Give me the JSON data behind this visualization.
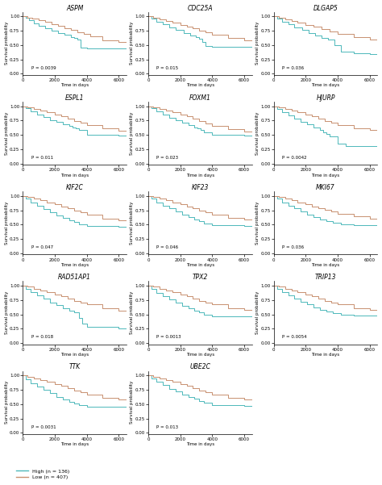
{
  "plots": [
    {
      "title": "ASPM",
      "p": "P = 0.0039",
      "row": 0,
      "col": 0
    },
    {
      "title": "CDC25A",
      "p": "P = 0.015",
      "row": 0,
      "col": 1
    },
    {
      "title": "DLGAP5",
      "p": "P = 0.036",
      "row": 0,
      "col": 2
    },
    {
      "title": "ESPL1",
      "p": "P = 0.011",
      "row": 1,
      "col": 0
    },
    {
      "title": "FOXM1",
      "p": "P = 0.023",
      "row": 1,
      "col": 1
    },
    {
      "title": "HJURP",
      "p": "P = 0.0042",
      "row": 1,
      "col": 2
    },
    {
      "title": "KIF2C",
      "p": "P = 0.047",
      "row": 2,
      "col": 0
    },
    {
      "title": "KIF23",
      "p": "P = 0.046",
      "row": 2,
      "col": 1
    },
    {
      "title": "MKI67",
      "p": "P = 0.036",
      "row": 2,
      "col": 2
    },
    {
      "title": "RAD51AP1",
      "p": "P = 0.018",
      "row": 3,
      "col": 0
    },
    {
      "title": "TPX2",
      "p": "P = 0.0013",
      "row": 3,
      "col": 1
    },
    {
      "title": "TRIP13",
      "p": "P = 0.0054",
      "row": 3,
      "col": 2
    },
    {
      "title": "TTK",
      "p": "P = 0.0031",
      "row": 4,
      "col": 0
    },
    {
      "title": "UBE2C",
      "p": "P = 0.013",
      "row": 4,
      "col": 1
    }
  ],
  "high_color": "#4db8ba",
  "low_color": "#c89070",
  "xlabel": "Time in days",
  "ylabel": "Survival probability",
  "xlim": [
    0,
    6500
  ],
  "ylim": [
    -0.02,
    1.08
  ],
  "xticks": [
    0,
    2000,
    4000,
    6000
  ],
  "yticks": [
    0.0,
    0.25,
    0.5,
    0.75,
    1.0
  ],
  "legend_high": "High (n = 136)",
  "legend_low": "Low (n = 407)",
  "bg_color": "#ffffff",
  "curves": {
    "ASPM": {
      "high_t": [
        0,
        200,
        400,
        700,
        1000,
        1400,
        1800,
        2200,
        2600,
        3000,
        3200,
        3400,
        3600,
        4000,
        6500
      ],
      "high_s": [
        1.0,
        0.97,
        0.93,
        0.88,
        0.84,
        0.79,
        0.75,
        0.71,
        0.68,
        0.64,
        0.62,
        0.6,
        0.45,
        0.44,
        0.44
      ],
      "low_t": [
        0,
        300,
        600,
        1000,
        1400,
        1800,
        2200,
        2600,
        3000,
        3400,
        3800,
        4200,
        5000,
        6000,
        6500
      ],
      "low_s": [
        1.0,
        0.98,
        0.96,
        0.93,
        0.9,
        0.87,
        0.84,
        0.8,
        0.76,
        0.73,
        0.69,
        0.65,
        0.58,
        0.55,
        0.54
      ]
    },
    "CDC25A": {
      "high_t": [
        0,
        200,
        500,
        900,
        1300,
        1700,
        2200,
        2600,
        3000,
        3200,
        3400,
        3600,
        4000,
        6500
      ],
      "high_s": [
        1.0,
        0.96,
        0.91,
        0.86,
        0.81,
        0.76,
        0.71,
        0.67,
        0.64,
        0.61,
        0.55,
        0.48,
        0.47,
        0.47
      ],
      "low_t": [
        0,
        300,
        700,
        1100,
        1500,
        2000,
        2400,
        2800,
        3200,
        3600,
        4000,
        5000,
        6000,
        6500
      ],
      "low_s": [
        1.0,
        0.98,
        0.95,
        0.92,
        0.89,
        0.85,
        0.82,
        0.79,
        0.75,
        0.72,
        0.68,
        0.62,
        0.58,
        0.57
      ]
    },
    "DLGAP5": {
      "high_t": [
        0,
        200,
        500,
        900,
        1300,
        1800,
        2200,
        2600,
        3000,
        3400,
        3800,
        4200,
        5000,
        6000,
        6500
      ],
      "high_s": [
        1.0,
        0.96,
        0.91,
        0.86,
        0.81,
        0.76,
        0.71,
        0.67,
        0.63,
        0.59,
        0.5,
        0.38,
        0.36,
        0.35,
        0.35
      ],
      "low_t": [
        0,
        300,
        700,
        1100,
        1500,
        2000,
        2500,
        3000,
        3500,
        4000,
        5000,
        6000,
        6500
      ],
      "low_s": [
        1.0,
        0.98,
        0.95,
        0.92,
        0.89,
        0.85,
        0.82,
        0.78,
        0.74,
        0.7,
        0.64,
        0.59,
        0.57
      ]
    },
    "ESPL1": {
      "high_t": [
        0,
        200,
        500,
        900,
        1300,
        1700,
        2100,
        2500,
        2900,
        3100,
        3300,
        3500,
        4000,
        6000,
        6500
      ],
      "high_s": [
        1.0,
        0.96,
        0.91,
        0.86,
        0.81,
        0.76,
        0.72,
        0.68,
        0.65,
        0.63,
        0.61,
        0.58,
        0.5,
        0.49,
        0.49
      ],
      "low_t": [
        0,
        300,
        700,
        1100,
        1500,
        2000,
        2400,
        2800,
        3200,
        3600,
        4000,
        5000,
        6000,
        6500
      ],
      "low_s": [
        1.0,
        0.98,
        0.95,
        0.92,
        0.89,
        0.85,
        0.82,
        0.78,
        0.74,
        0.71,
        0.67,
        0.61,
        0.57,
        0.56
      ]
    },
    "FOXM1": {
      "high_t": [
        0,
        200,
        500,
        900,
        1300,
        1700,
        2100,
        2500,
        2900,
        3100,
        3300,
        3500,
        4000,
        6000,
        6500
      ],
      "high_s": [
        1.0,
        0.96,
        0.91,
        0.86,
        0.8,
        0.75,
        0.71,
        0.67,
        0.63,
        0.61,
        0.58,
        0.55,
        0.5,
        0.49,
        0.48
      ],
      "low_t": [
        0,
        300,
        700,
        1100,
        1500,
        2000,
        2400,
        2800,
        3200,
        3600,
        4000,
        5000,
        6000,
        6500
      ],
      "low_s": [
        1.0,
        0.98,
        0.95,
        0.92,
        0.89,
        0.85,
        0.82,
        0.78,
        0.74,
        0.7,
        0.66,
        0.6,
        0.56,
        0.55
      ]
    },
    "HJURP": {
      "high_t": [
        0,
        200,
        500,
        900,
        1300,
        1700,
        2100,
        2500,
        2900,
        3100,
        3300,
        3500,
        4000,
        4500,
        6500
      ],
      "high_s": [
        1.0,
        0.95,
        0.9,
        0.84,
        0.78,
        0.73,
        0.68,
        0.63,
        0.59,
        0.55,
        0.52,
        0.48,
        0.35,
        0.3,
        0.28
      ],
      "low_t": [
        0,
        300,
        700,
        1100,
        1500,
        2000,
        2400,
        2800,
        3200,
        3600,
        4000,
        5000,
        6000,
        6500
      ],
      "low_s": [
        1.0,
        0.98,
        0.95,
        0.92,
        0.89,
        0.85,
        0.82,
        0.78,
        0.74,
        0.71,
        0.67,
        0.61,
        0.58,
        0.57
      ]
    },
    "KIF2C": {
      "high_t": [
        0,
        200,
        500,
        900,
        1300,
        1700,
        2100,
        2500,
        2900,
        3200,
        3500,
        4000,
        6000,
        6500
      ],
      "high_s": [
        1.0,
        0.95,
        0.89,
        0.83,
        0.77,
        0.71,
        0.66,
        0.62,
        0.58,
        0.55,
        0.5,
        0.47,
        0.46,
        0.46
      ],
      "low_t": [
        0,
        300,
        700,
        1100,
        1500,
        2000,
        2400,
        2800,
        3200,
        3600,
        4000,
        5000,
        6000,
        6500
      ],
      "low_s": [
        1.0,
        0.98,
        0.95,
        0.92,
        0.89,
        0.85,
        0.82,
        0.78,
        0.74,
        0.71,
        0.67,
        0.61,
        0.58,
        0.57
      ]
    },
    "KIF23": {
      "high_t": [
        0,
        200,
        500,
        900,
        1300,
        1700,
        2100,
        2500,
        2900,
        3200,
        3500,
        4000,
        6000,
        6500
      ],
      "high_s": [
        1.0,
        0.95,
        0.89,
        0.83,
        0.78,
        0.73,
        0.68,
        0.63,
        0.59,
        0.56,
        0.52,
        0.49,
        0.48,
        0.47
      ],
      "low_t": [
        0,
        300,
        700,
        1100,
        1500,
        2000,
        2400,
        2800,
        3200,
        3600,
        4000,
        5000,
        6000,
        6500
      ],
      "low_s": [
        1.0,
        0.98,
        0.95,
        0.92,
        0.89,
        0.85,
        0.82,
        0.78,
        0.74,
        0.71,
        0.67,
        0.62,
        0.59,
        0.58
      ]
    },
    "MKI67": {
      "high_t": [
        0,
        200,
        500,
        900,
        1300,
        1700,
        2100,
        2500,
        2900,
        3300,
        3700,
        4200,
        5000,
        6500
      ],
      "high_s": [
        1.0,
        0.95,
        0.89,
        0.83,
        0.78,
        0.73,
        0.68,
        0.63,
        0.59,
        0.56,
        0.53,
        0.5,
        0.49,
        0.49
      ],
      "low_t": [
        0,
        300,
        700,
        1100,
        1500,
        2000,
        2400,
        2800,
        3200,
        3600,
        4000,
        5000,
        6000,
        6500
      ],
      "low_s": [
        1.0,
        0.98,
        0.95,
        0.92,
        0.89,
        0.85,
        0.82,
        0.79,
        0.76,
        0.73,
        0.69,
        0.64,
        0.6,
        0.59
      ]
    },
    "RAD51AP1": {
      "high_t": [
        0,
        200,
        500,
        900,
        1300,
        1700,
        2100,
        2500,
        2900,
        3200,
        3500,
        3700,
        4000,
        6000,
        6500
      ],
      "high_s": [
        1.0,
        0.95,
        0.89,
        0.83,
        0.77,
        0.71,
        0.66,
        0.61,
        0.57,
        0.53,
        0.44,
        0.34,
        0.28,
        0.26,
        0.26
      ],
      "low_t": [
        0,
        300,
        700,
        1100,
        1500,
        2000,
        2400,
        2800,
        3200,
        3600,
        4000,
        5000,
        6000,
        6500
      ],
      "low_s": [
        1.0,
        0.98,
        0.95,
        0.92,
        0.89,
        0.85,
        0.82,
        0.78,
        0.74,
        0.71,
        0.67,
        0.61,
        0.57,
        0.56
      ]
    },
    "TPX2": {
      "high_t": [
        0,
        200,
        500,
        900,
        1300,
        1700,
        2100,
        2500,
        2900,
        3200,
        3500,
        4000,
        6000,
        6500
      ],
      "high_s": [
        1.0,
        0.95,
        0.88,
        0.82,
        0.76,
        0.7,
        0.65,
        0.6,
        0.56,
        0.53,
        0.5,
        0.47,
        0.46,
        0.46
      ],
      "low_t": [
        0,
        300,
        700,
        1100,
        1500,
        2000,
        2400,
        2800,
        3200,
        3600,
        4000,
        5000,
        6000,
        6500
      ],
      "low_s": [
        1.0,
        0.98,
        0.95,
        0.92,
        0.89,
        0.85,
        0.82,
        0.78,
        0.74,
        0.71,
        0.67,
        0.61,
        0.58,
        0.57
      ]
    },
    "TRIP13": {
      "high_t": [
        0,
        200,
        500,
        900,
        1300,
        1700,
        2100,
        2500,
        2900,
        3300,
        3700,
        4200,
        5000,
        6500
      ],
      "high_s": [
        1.0,
        0.95,
        0.89,
        0.83,
        0.77,
        0.72,
        0.67,
        0.62,
        0.58,
        0.55,
        0.52,
        0.49,
        0.48,
        0.48
      ],
      "low_t": [
        0,
        300,
        700,
        1100,
        1500,
        2000,
        2400,
        2800,
        3200,
        3600,
        4000,
        5000,
        6000,
        6500
      ],
      "low_s": [
        1.0,
        0.98,
        0.95,
        0.92,
        0.89,
        0.85,
        0.82,
        0.78,
        0.74,
        0.71,
        0.67,
        0.61,
        0.58,
        0.57
      ]
    },
    "TTK": {
      "high_t": [
        0,
        200,
        500,
        900,
        1300,
        1700,
        2100,
        2500,
        2900,
        3200,
        3500,
        4000,
        6000,
        6500
      ],
      "high_s": [
        1.0,
        0.94,
        0.87,
        0.81,
        0.75,
        0.69,
        0.63,
        0.58,
        0.54,
        0.51,
        0.48,
        0.46,
        0.45,
        0.45
      ],
      "low_t": [
        0,
        300,
        700,
        1100,
        1500,
        2000,
        2400,
        2800,
        3200,
        3600,
        4000,
        5000,
        6000,
        6500
      ],
      "low_s": [
        1.0,
        0.98,
        0.95,
        0.92,
        0.89,
        0.85,
        0.82,
        0.78,
        0.74,
        0.71,
        0.67,
        0.61,
        0.58,
        0.57
      ]
    },
    "UBE2C": {
      "high_t": [
        0,
        200,
        500,
        900,
        1300,
        1700,
        2100,
        2500,
        2900,
        3200,
        3500,
        4000,
        5000,
        6000,
        6500
      ],
      "high_s": [
        1.0,
        0.95,
        0.89,
        0.83,
        0.77,
        0.72,
        0.67,
        0.63,
        0.59,
        0.55,
        0.52,
        0.49,
        0.48,
        0.47,
        0.47
      ],
      "low_t": [
        0,
        300,
        700,
        1100,
        1500,
        2000,
        2400,
        2800,
        3200,
        3600,
        4000,
        5000,
        6000,
        6500
      ],
      "low_s": [
        1.0,
        0.98,
        0.95,
        0.92,
        0.89,
        0.85,
        0.82,
        0.78,
        0.74,
        0.71,
        0.67,
        0.61,
        0.58,
        0.57
      ]
    }
  }
}
